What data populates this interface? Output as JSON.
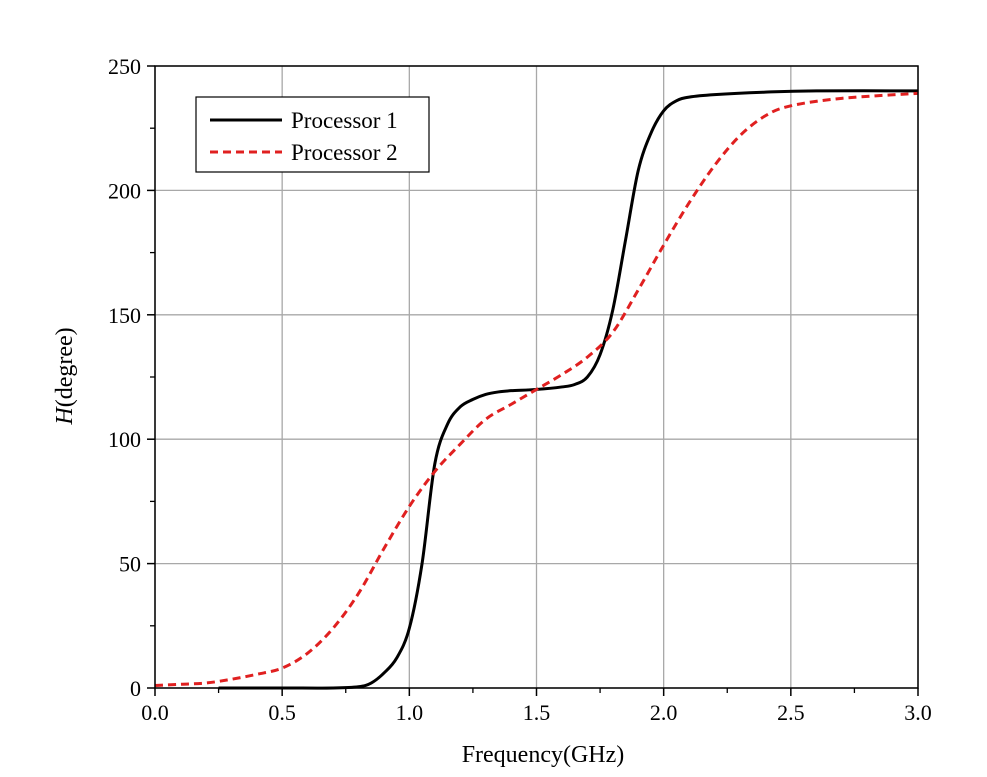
{
  "chart_data": {
    "type": "line",
    "title": "",
    "xlabel": "Frequency(GHz)",
    "ylabel_italic": "H",
    "ylabel_rest": "(degree)",
    "xlim": [
      0.0,
      3.0
    ],
    "ylim": [
      0,
      250
    ],
    "xticks": [
      "0.0",
      "0.5",
      "1.0",
      "1.5",
      "2.0",
      "2.5",
      "3.0"
    ],
    "yticks": [
      "0",
      "50",
      "100",
      "150",
      "200",
      "250"
    ],
    "grid": true,
    "legend_position": "top-left",
    "series": [
      {
        "name": "Processor 1",
        "color": "#000000",
        "style": "solid",
        "x": [
          0.25,
          0.5,
          0.7,
          0.8,
          0.85,
          0.9,
          0.95,
          1.0,
          1.05,
          1.1,
          1.15,
          1.2,
          1.25,
          1.3,
          1.35,
          1.4,
          1.5,
          1.6,
          1.65,
          1.7,
          1.75,
          1.8,
          1.85,
          1.9,
          1.95,
          2.0,
          2.05,
          2.1,
          2.2,
          2.4,
          2.6,
          3.0
        ],
        "y": [
          0,
          0,
          0,
          0.5,
          2,
          6,
          12,
          24,
          50,
          90,
          106,
          113,
          116,
          118,
          119,
          119.5,
          120,
          121,
          122,
          125,
          134,
          152,
          180,
          208,
          223,
          232,
          236,
          237.5,
          238.5,
          239.5,
          240,
          240
        ]
      },
      {
        "name": "Processor 2",
        "color": "#e02020",
        "style": "dashed",
        "x": [
          0.0,
          0.1,
          0.2,
          0.3,
          0.4,
          0.5,
          0.6,
          0.7,
          0.8,
          0.9,
          1.0,
          1.1,
          1.2,
          1.3,
          1.4,
          1.5,
          1.6,
          1.7,
          1.8,
          1.9,
          2.0,
          2.1,
          2.2,
          2.3,
          2.4,
          2.5,
          2.7,
          3.0
        ],
        "y": [
          1,
          1.5,
          2,
          3.5,
          5.5,
          8,
          14,
          24,
          38,
          56,
          73,
          87,
          98,
          108,
          114,
          120,
          126,
          133,
          143,
          160,
          178,
          195,
          210,
          222,
          230,
          234,
          237,
          239
        ]
      }
    ]
  }
}
